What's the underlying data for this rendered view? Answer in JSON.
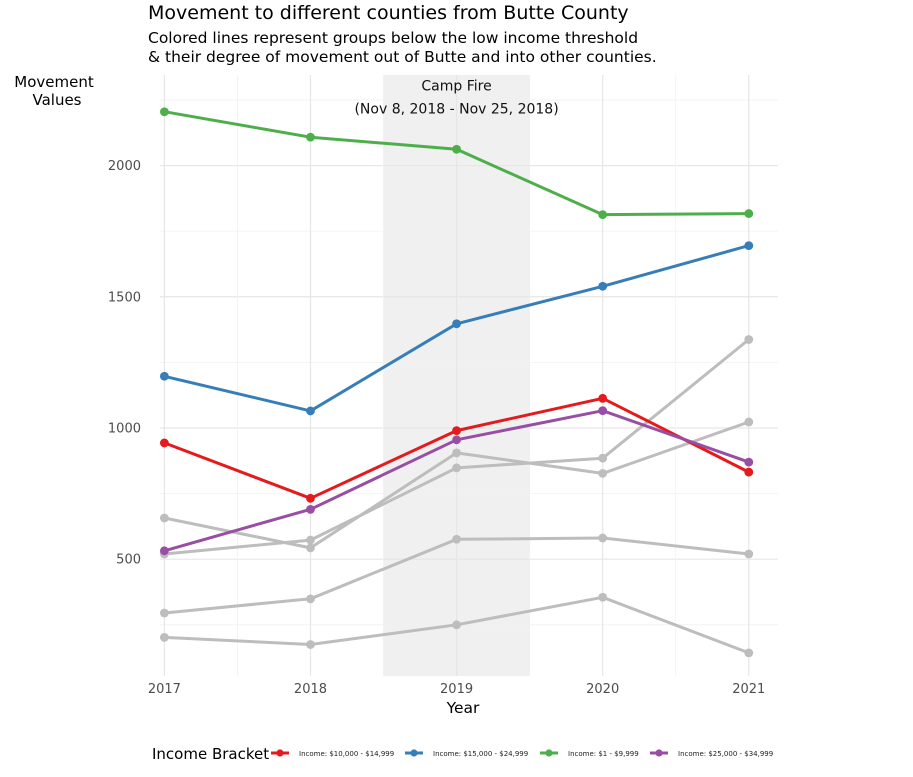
{
  "chart_data": {
    "type": "line",
    "title": "Movement to different counties from Butte County",
    "subtitle_lines": [
      "Colored lines represent groups below the low income threshold",
      "& their degree of movement out of Butte and into other counties."
    ],
    "ylabel_lines": [
      "Movement",
      "Values"
    ],
    "xlabel": "Year",
    "x": [
      2017,
      2018,
      2019,
      2020,
      2021
    ],
    "xlim": [
      2016.97,
      2021.2
    ],
    "ylim": [
      55,
      2345
    ],
    "y_ticks": [
      500,
      1000,
      1500,
      2000
    ],
    "grid": true,
    "annotation": {
      "lines": [
        "Camp Fire",
        "(Nov 8, 2018 - Nov 25, 2018)"
      ],
      "x_start": 2018.5,
      "x_end": 2019.5,
      "label_x": 2019,
      "label_y": 2240
    },
    "highlight_series": [
      {
        "name": "Income: $10,000 - $14,999",
        "color": "#e41a1c",
        "values": [
          943,
          732,
          990,
          1113,
          832
        ]
      },
      {
        "name": "Income: $15,000 - $24,999",
        "color": "#377eb8",
        "values": [
          1197,
          1065,
          1397,
          1540,
          1695
        ]
      },
      {
        "name": "Income: $1 - $9,999",
        "color": "#4daf4a",
        "values": [
          2205,
          2108,
          2062,
          1813,
          1817
        ]
      },
      {
        "name": "Income: $25,000 - $34,999",
        "color": "#984ea3",
        "values": [
          532,
          690,
          955,
          1066,
          870
        ]
      }
    ],
    "background_series": [
      {
        "values": [
          657,
          543,
          905,
          827,
          1023
        ]
      },
      {
        "values": [
          520,
          573,
          848,
          885,
          1337
        ]
      },
      {
        "values": [
          295,
          349,
          576,
          581,
          520
        ]
      },
      {
        "values": [
          202,
          175,
          250,
          355,
          143
        ]
      }
    ],
    "background_color": "#bdbdbd",
    "legend": {
      "title": "Income Bracket",
      "placement": "bottom"
    }
  }
}
